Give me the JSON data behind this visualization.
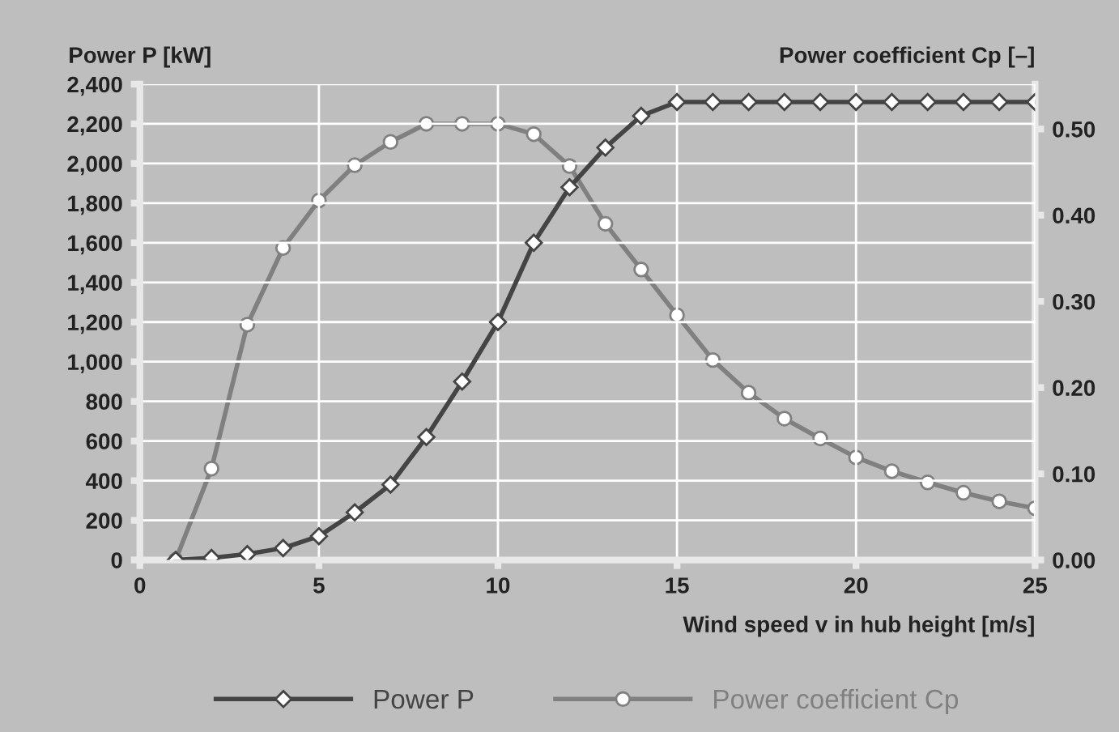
{
  "chart_data": {
    "type": "line",
    "xlabel": "Wind speed v in hub height [m/s]",
    "ylabel": "Power P [kW]",
    "y2label": "Power coefficient Cp [–]",
    "x": [
      1,
      2,
      3,
      4,
      5,
      6,
      7,
      8,
      9,
      10,
      11,
      12,
      13,
      14,
      15,
      16,
      17,
      18,
      19,
      20,
      21,
      22,
      23,
      24,
      25
    ],
    "series": [
      {
        "name": "Power P",
        "color": "#444444",
        "marker": "diamond",
        "values": [
          0,
          10,
          30,
          60,
          120,
          240,
          380,
          620,
          900,
          1200,
          1600,
          1880,
          2080,
          2240,
          2310,
          2310,
          2310,
          2310,
          2310,
          2310,
          2310,
          2310,
          2310,
          2310,
          2310
        ]
      },
      {
        "name": "Power coefficient Cp",
        "color": "#808080",
        "marker": "circle",
        "axis": "y2",
        "values": [
          0,
          0.106,
          0.273,
          0.362,
          0.417,
          0.458,
          0.485,
          0.506,
          0.506,
          0.506,
          0.494,
          0.457,
          0.39,
          0.337,
          0.284,
          0.232,
          0.194,
          0.164,
          0.141,
          0.119,
          0.103,
          0.09,
          0.078,
          0.068,
          0.06
        ]
      }
    ],
    "xlim": [
      0,
      25
    ],
    "xticks": [
      0,
      5,
      10,
      15,
      20,
      25
    ],
    "ylim": [
      0,
      2400
    ],
    "yticks": [
      0,
      200,
      400,
      600,
      800,
      {
        "value": 1000,
        "label": "1,000"
      },
      {
        "value": 1200,
        "label": "1,200"
      },
      {
        "value": 1400,
        "label": "1,400"
      },
      {
        "value": 1600,
        "label": "1,600"
      },
      {
        "value": 1800,
        "label": "1,800"
      },
      {
        "value": 2000,
        "label": "2,000"
      },
      {
        "value": 2200,
        "label": "2,200"
      },
      {
        "value": 2400,
        "label": "2,400"
      }
    ],
    "y2lim": [
      0,
      0.552
    ],
    "y2ticks": [
      {
        "value": 0,
        "label": "0.00"
      },
      {
        "value": 0.1,
        "label": "0.10"
      },
      {
        "value": 0.2,
        "label": "0.20"
      },
      {
        "value": 0.3,
        "label": "0.30"
      },
      {
        "value": 0.4,
        "label": "0.40"
      },
      {
        "value": 0.5,
        "label": "0.50"
      }
    ],
    "grid": true,
    "legend": "bottom",
    "line_style": "solid"
  }
}
